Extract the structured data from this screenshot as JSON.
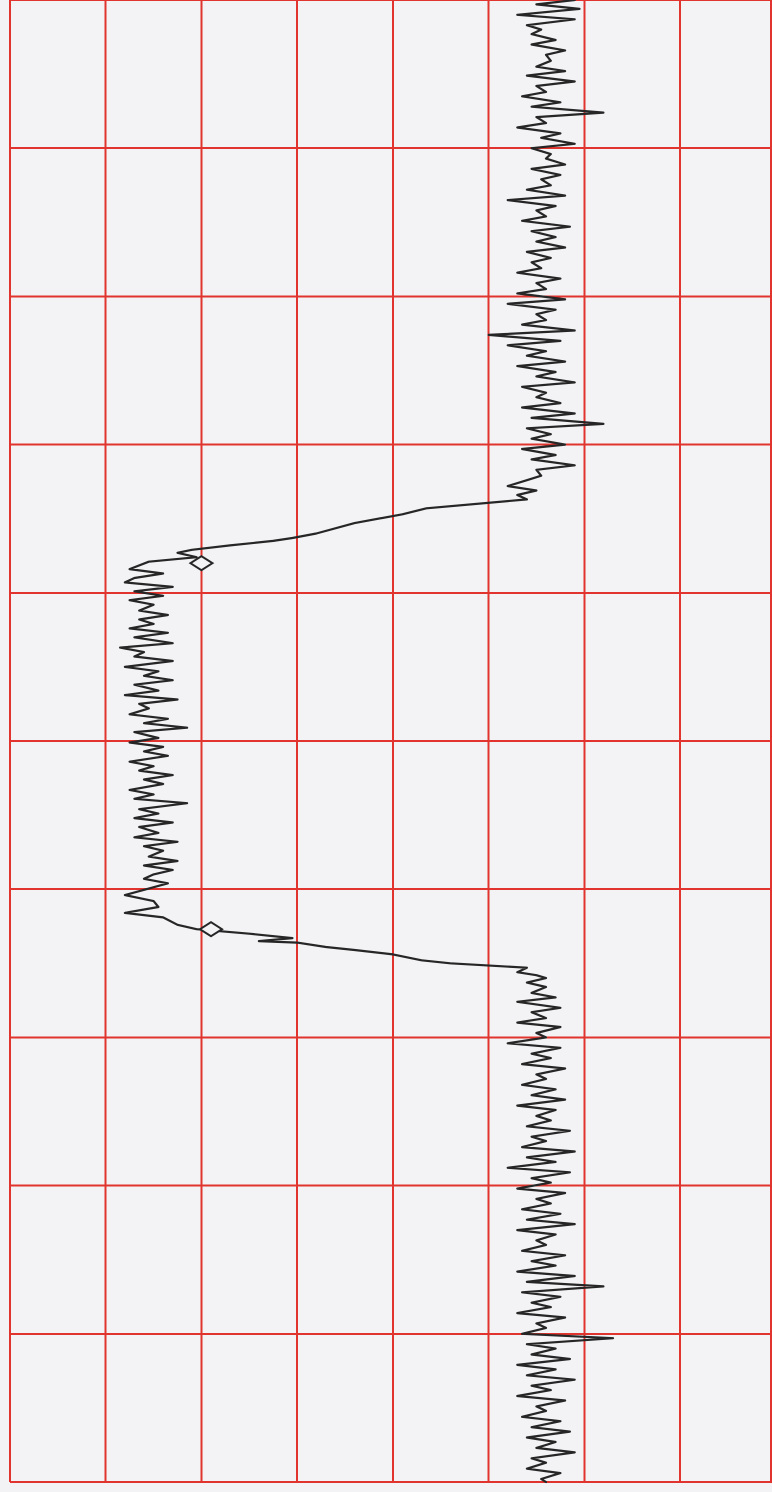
{
  "chart_data": {
    "type": "line",
    "orientation": "vertical-strip",
    "title": "",
    "xlabel": "",
    "ylabel": "",
    "grid": true,
    "grid_color": "#e2342e",
    "trace_color": "#262626",
    "paper_color": "#f3f3f6",
    "x_divisions": 8,
    "y_divisions": 10,
    "xlim": [
      0,
      8
    ],
    "ylim": [
      0,
      10
    ],
    "series": [
      {
        "points": [
          [
            5.9,
            0.0
          ],
          [
            5.5,
            0.03
          ],
          [
            5.95,
            0.06
          ],
          [
            5.3,
            0.1
          ],
          [
            5.9,
            0.13
          ],
          [
            5.4,
            0.17
          ],
          [
            5.55,
            0.2
          ],
          [
            5.45,
            0.23
          ],
          [
            5.7,
            0.27
          ],
          [
            5.45,
            0.3
          ],
          [
            5.8,
            0.34
          ],
          [
            5.6,
            0.37
          ],
          [
            5.65,
            0.41
          ],
          [
            5.5,
            0.45
          ],
          [
            5.8,
            0.48
          ],
          [
            5.4,
            0.51
          ],
          [
            5.9,
            0.55
          ],
          [
            5.5,
            0.58
          ],
          [
            5.6,
            0.62
          ],
          [
            5.35,
            0.65
          ],
          [
            5.75,
            0.69
          ],
          [
            5.45,
            0.72
          ],
          [
            6.2,
            0.76
          ],
          [
            5.5,
            0.79
          ],
          [
            5.6,
            0.83
          ],
          [
            5.3,
            0.86
          ],
          [
            5.75,
            0.9
          ],
          [
            5.55,
            0.93
          ],
          [
            5.9,
            0.97
          ],
          [
            5.45,
            1.0
          ],
          [
            5.65,
            1.04
          ],
          [
            5.6,
            1.07
          ],
          [
            5.8,
            1.11
          ],
          [
            5.45,
            1.14
          ],
          [
            5.75,
            1.18
          ],
          [
            5.55,
            1.21
          ],
          [
            5.65,
            1.25
          ],
          [
            5.4,
            1.28
          ],
          [
            5.8,
            1.32
          ],
          [
            5.2,
            1.35
          ],
          [
            5.7,
            1.39
          ],
          [
            5.5,
            1.42
          ],
          [
            5.6,
            1.46
          ],
          [
            5.35,
            1.49
          ],
          [
            5.85,
            1.53
          ],
          [
            5.45,
            1.56
          ],
          [
            5.7,
            1.6
          ],
          [
            5.5,
            1.63
          ],
          [
            5.8,
            1.67
          ],
          [
            5.4,
            1.7
          ],
          [
            5.65,
            1.74
          ],
          [
            5.45,
            1.77
          ],
          [
            5.55,
            1.81
          ],
          [
            5.3,
            1.84
          ],
          [
            5.75,
            1.88
          ],
          [
            5.5,
            1.91
          ],
          [
            5.6,
            1.95
          ],
          [
            5.3,
            1.98
          ],
          [
            5.8,
            2.02
          ],
          [
            5.2,
            2.05
          ],
          [
            5.7,
            2.09
          ],
          [
            5.5,
            2.12
          ],
          [
            5.6,
            2.16
          ],
          [
            5.35,
            2.19
          ],
          [
            5.9,
            2.23
          ],
          [
            5.0,
            2.26
          ],
          [
            5.75,
            2.3
          ],
          [
            5.2,
            2.33
          ],
          [
            5.6,
            2.37
          ],
          [
            5.4,
            2.4
          ],
          [
            5.8,
            2.44
          ],
          [
            5.3,
            2.47
          ],
          [
            5.7,
            2.51
          ],
          [
            5.5,
            2.54
          ],
          [
            5.9,
            2.58
          ],
          [
            5.35,
            2.61
          ],
          [
            5.6,
            2.65
          ],
          [
            5.5,
            2.68
          ],
          [
            5.75,
            2.72
          ],
          [
            5.35,
            2.75
          ],
          [
            5.9,
            2.79
          ],
          [
            5.45,
            2.82
          ],
          [
            6.2,
            2.86
          ],
          [
            5.4,
            2.89
          ],
          [
            5.65,
            2.93
          ],
          [
            5.45,
            2.96
          ],
          [
            5.8,
            3.0
          ],
          [
            5.35,
            3.03
          ],
          [
            5.7,
            3.07
          ],
          [
            5.45,
            3.1
          ],
          [
            5.9,
            3.14
          ],
          [
            5.5,
            3.17
          ],
          [
            5.55,
            3.21
          ],
          [
            5.4,
            3.24
          ],
          [
            5.2,
            3.28
          ],
          [
            5.5,
            3.31
          ],
          [
            5.3,
            3.34
          ],
          [
            5.4,
            3.37
          ],
          [
            4.35,
            3.43
          ],
          [
            4.1,
            3.47
          ],
          [
            3.6,
            3.53
          ],
          [
            3.2,
            3.6
          ],
          [
            2.95,
            3.63
          ],
          [
            2.75,
            3.65
          ],
          [
            2.3,
            3.68
          ],
          [
            1.9,
            3.71
          ],
          [
            1.75,
            3.73
          ],
          [
            1.95,
            3.76
          ],
          [
            1.45,
            3.79
          ],
          [
            1.25,
            3.84
          ],
          [
            1.6,
            3.87
          ],
          [
            1.3,
            3.9
          ],
          [
            1.2,
            3.93
          ],
          [
            1.7,
            3.96
          ],
          [
            1.3,
            3.99
          ],
          [
            1.6,
            4.02
          ],
          [
            1.25,
            4.05
          ],
          [
            1.5,
            4.08
          ],
          [
            1.35,
            4.12
          ],
          [
            1.65,
            4.15
          ],
          [
            1.35,
            4.18
          ],
          [
            1.5,
            4.21
          ],
          [
            1.25,
            4.24
          ],
          [
            1.65,
            4.27
          ],
          [
            1.3,
            4.3
          ],
          [
            1.7,
            4.34
          ],
          [
            1.15,
            4.37
          ],
          [
            1.4,
            4.4
          ],
          [
            1.3,
            4.43
          ],
          [
            1.7,
            4.46
          ],
          [
            1.2,
            4.5
          ],
          [
            1.55,
            4.53
          ],
          [
            1.4,
            4.56
          ],
          [
            1.7,
            4.59
          ],
          [
            1.3,
            4.62
          ],
          [
            1.55,
            4.66
          ],
          [
            1.2,
            4.69
          ],
          [
            1.75,
            4.72
          ],
          [
            1.35,
            4.75
          ],
          [
            1.45,
            4.78
          ],
          [
            1.25,
            4.82
          ],
          [
            1.65,
            4.85
          ],
          [
            1.4,
            4.88
          ],
          [
            1.85,
            4.91
          ],
          [
            1.3,
            4.94
          ],
          [
            1.55,
            4.98
          ],
          [
            1.25,
            5.01
          ],
          [
            1.6,
            5.04
          ],
          [
            1.4,
            5.07
          ],
          [
            1.65,
            5.1
          ],
          [
            1.25,
            5.14
          ],
          [
            1.5,
            5.17
          ],
          [
            1.35,
            5.2
          ],
          [
            1.7,
            5.23
          ],
          [
            1.4,
            5.26
          ],
          [
            1.6,
            5.29
          ],
          [
            1.25,
            5.33
          ],
          [
            1.5,
            5.36
          ],
          [
            1.3,
            5.39
          ],
          [
            1.85,
            5.42
          ],
          [
            1.35,
            5.46
          ],
          [
            1.55,
            5.49
          ],
          [
            1.3,
            5.52
          ],
          [
            1.7,
            5.55
          ],
          [
            1.35,
            5.58
          ],
          [
            1.55,
            5.62
          ],
          [
            1.3,
            5.65
          ],
          [
            1.75,
            5.68
          ],
          [
            1.4,
            5.71
          ],
          [
            1.6,
            5.74
          ],
          [
            1.45,
            5.78
          ],
          [
            1.75,
            5.81
          ],
          [
            1.4,
            5.84
          ],
          [
            1.7,
            5.87
          ],
          [
            1.5,
            5.9
          ],
          [
            1.4,
            5.93
          ],
          [
            1.65,
            5.96
          ],
          [
            1.2,
            6.04
          ],
          [
            1.5,
            6.08
          ],
          [
            1.55,
            6.12
          ],
          [
            1.2,
            6.16
          ],
          [
            1.6,
            6.19
          ],
          [
            1.75,
            6.24
          ],
          [
            1.95,
            6.27
          ],
          [
            2.5,
            6.3
          ],
          [
            2.95,
            6.33
          ],
          [
            2.6,
            6.35
          ],
          [
            3.0,
            6.36
          ],
          [
            3.3,
            6.39
          ],
          [
            3.6,
            6.41
          ],
          [
            4.0,
            6.44
          ],
          [
            4.3,
            6.48
          ],
          [
            4.6,
            6.5
          ],
          [
            5.4,
            6.53
          ],
          [
            5.3,
            6.56
          ],
          [
            5.5,
            6.58
          ],
          [
            5.6,
            6.6
          ],
          [
            5.4,
            6.63
          ],
          [
            5.6,
            6.66
          ],
          [
            5.45,
            6.7
          ],
          [
            5.7,
            6.73
          ],
          [
            5.3,
            6.76
          ],
          [
            5.75,
            6.8
          ],
          [
            5.45,
            6.83
          ],
          [
            5.6,
            6.87
          ],
          [
            5.3,
            6.9
          ],
          [
            5.75,
            6.93
          ],
          [
            5.5,
            6.97
          ],
          [
            5.6,
            7.0
          ],
          [
            5.2,
            7.04
          ],
          [
            5.75,
            7.07
          ],
          [
            5.45,
            7.11
          ],
          [
            5.65,
            7.14
          ],
          [
            5.35,
            7.18
          ],
          [
            5.8,
            7.21
          ],
          [
            5.5,
            7.25
          ],
          [
            5.6,
            7.28
          ],
          [
            5.35,
            7.32
          ],
          [
            5.7,
            7.35
          ],
          [
            5.45,
            7.39
          ],
          [
            5.8,
            7.42
          ],
          [
            5.3,
            7.46
          ],
          [
            5.7,
            7.49
          ],
          [
            5.5,
            7.53
          ],
          [
            5.65,
            7.56
          ],
          [
            5.4,
            7.6
          ],
          [
            5.85,
            7.63
          ],
          [
            5.45,
            7.67
          ],
          [
            5.6,
            7.7
          ],
          [
            5.35,
            7.74
          ],
          [
            5.9,
            7.77
          ],
          [
            5.4,
            7.81
          ],
          [
            5.7,
            7.84
          ],
          [
            5.2,
            7.88
          ],
          [
            5.85,
            7.91
          ],
          [
            5.45,
            7.95
          ],
          [
            5.65,
            7.98
          ],
          [
            5.3,
            8.02
          ],
          [
            5.8,
            8.05
          ],
          [
            5.5,
            8.09
          ],
          [
            5.65,
            8.12
          ],
          [
            5.35,
            8.16
          ],
          [
            5.75,
            8.19
          ],
          [
            5.4,
            8.23
          ],
          [
            5.9,
            8.26
          ],
          [
            5.3,
            8.3
          ],
          [
            5.7,
            8.33
          ],
          [
            5.5,
            8.37
          ],
          [
            5.6,
            8.4
          ],
          [
            5.35,
            8.44
          ],
          [
            5.8,
            8.47
          ],
          [
            5.45,
            8.51
          ],
          [
            5.7,
            8.54
          ],
          [
            5.3,
            8.58
          ],
          [
            5.9,
            8.61
          ],
          [
            5.4,
            8.65
          ],
          [
            6.2,
            8.68
          ],
          [
            5.35,
            8.72
          ],
          [
            5.75,
            8.75
          ],
          [
            5.45,
            8.79
          ],
          [
            5.65,
            8.82
          ],
          [
            5.3,
            8.86
          ],
          [
            5.8,
            8.89
          ],
          [
            5.5,
            8.93
          ],
          [
            5.6,
            8.96
          ],
          [
            5.35,
            9.0
          ],
          [
            6.3,
            9.03
          ],
          [
            5.4,
            9.07
          ],
          [
            5.7,
            9.1
          ],
          [
            5.45,
            9.14
          ],
          [
            5.85,
            9.17
          ],
          [
            5.3,
            9.21
          ],
          [
            5.7,
            9.24
          ],
          [
            5.4,
            9.28
          ],
          [
            5.9,
            9.31
          ],
          [
            5.45,
            9.35
          ],
          [
            5.65,
            9.38
          ],
          [
            5.3,
            9.42
          ],
          [
            5.8,
            9.45
          ],
          [
            5.5,
            9.49
          ],
          [
            5.6,
            9.52
          ],
          [
            5.35,
            9.56
          ],
          [
            5.75,
            9.59
          ],
          [
            5.45,
            9.63
          ],
          [
            5.85,
            9.66
          ],
          [
            5.4,
            9.7
          ],
          [
            5.7,
            9.73
          ],
          [
            5.5,
            9.77
          ],
          [
            5.9,
            9.8
          ],
          [
            5.45,
            9.84
          ],
          [
            5.6,
            9.87
          ],
          [
            5.4,
            9.91
          ],
          [
            5.75,
            9.94
          ],
          [
            5.55,
            9.98
          ],
          [
            5.6,
            10.0
          ]
        ]
      }
    ],
    "markers": [
      {
        "shape": "diamond",
        "x": 2.0,
        "y": 3.8
      },
      {
        "shape": "diamond",
        "x": 2.1,
        "y": 6.27
      }
    ]
  }
}
